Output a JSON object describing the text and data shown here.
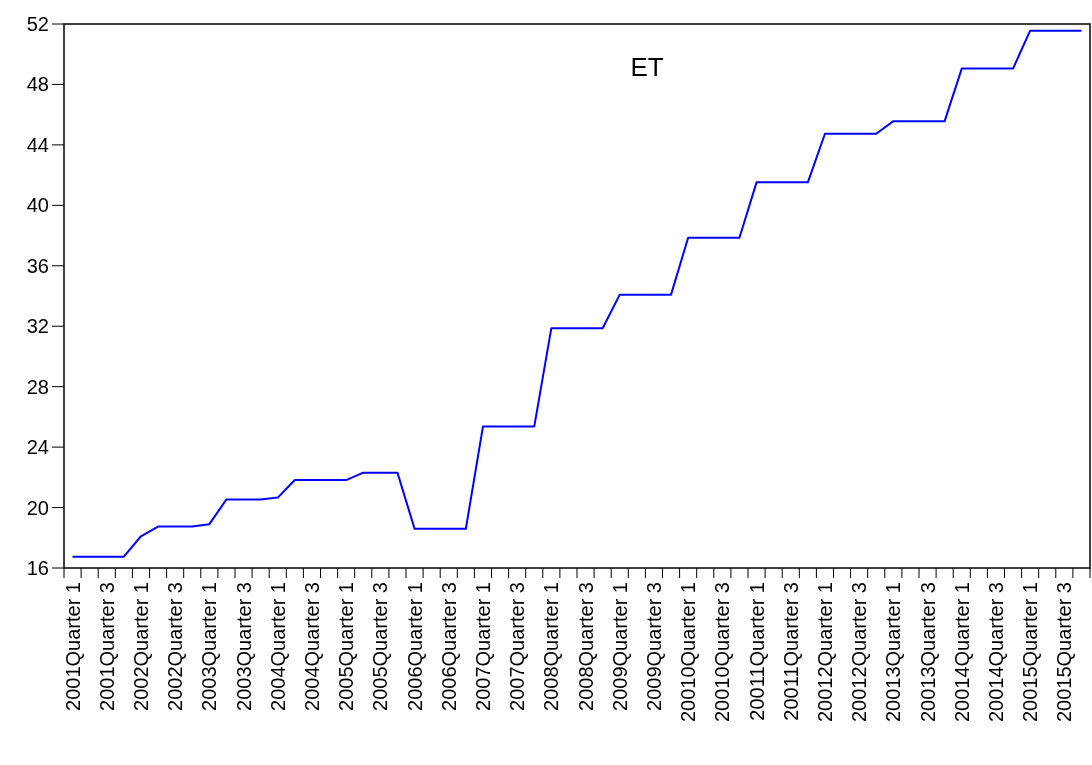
{
  "chart_data": {
    "type": "line",
    "title": "ET",
    "categories": [
      "2001Quarter 1",
      null,
      "2001Quarter 3",
      null,
      "2002Quarter 1",
      null,
      "2002Quarter 3",
      null,
      "2003Quarter 1",
      null,
      "2003Quarter 3",
      null,
      "2004Quarter 1",
      null,
      "2004Quarter 3",
      null,
      "2005Quarter 1",
      null,
      "2005Quarter 3",
      null,
      "2006Quarter 1",
      null,
      "2006Quarter 3",
      null,
      "2007Quarter 1",
      null,
      "2007Quarter 3",
      null,
      "2008Quarter 1",
      null,
      "2008Quarter 3",
      null,
      "2009Quarter 1",
      null,
      "2009Quarter 3",
      null,
      "20010Quarter 1",
      null,
      "20010Quarter 3",
      null,
      "20011Quarter 1",
      null,
      "20011Quarter 3",
      null,
      "20012Quarter 1",
      null,
      "20012Quarter 3",
      null,
      "20013Quarter 1",
      null,
      "20013Quarter 3",
      null,
      "20014Quarter 1",
      null,
      "20014Quarter 3",
      null,
      "20015Quarter 1",
      null,
      "20015Quarter 3",
      null
    ],
    "series": [
      {
        "color": "#0000ff",
        "values": [
          16.75,
          16.75,
          16.75,
          16.75,
          18.1,
          18.74,
          18.74,
          18.74,
          18.9,
          20.54,
          20.54,
          20.54,
          20.66,
          21.82,
          21.82,
          21.82,
          21.82,
          22.31,
          22.31,
          22.31,
          18.6,
          18.6,
          18.6,
          18.6,
          25.36,
          25.36,
          25.36,
          25.36,
          31.87,
          31.87,
          31.87,
          31.87,
          34.09,
          34.09,
          34.09,
          34.09,
          37.86,
          37.86,
          37.86,
          37.86,
          41.52,
          41.52,
          41.52,
          41.52,
          44.74,
          44.74,
          44.74,
          44.74,
          45.57,
          45.57,
          45.57,
          45.57,
          49.05,
          49.05,
          49.05,
          49.05,
          51.56,
          51.56,
          51.56,
          51.56
        ]
      }
    ],
    "ylim": [
      16,
      52
    ],
    "yticks": [
      16,
      20,
      24,
      28,
      32,
      36,
      40,
      44,
      48,
      52
    ]
  }
}
